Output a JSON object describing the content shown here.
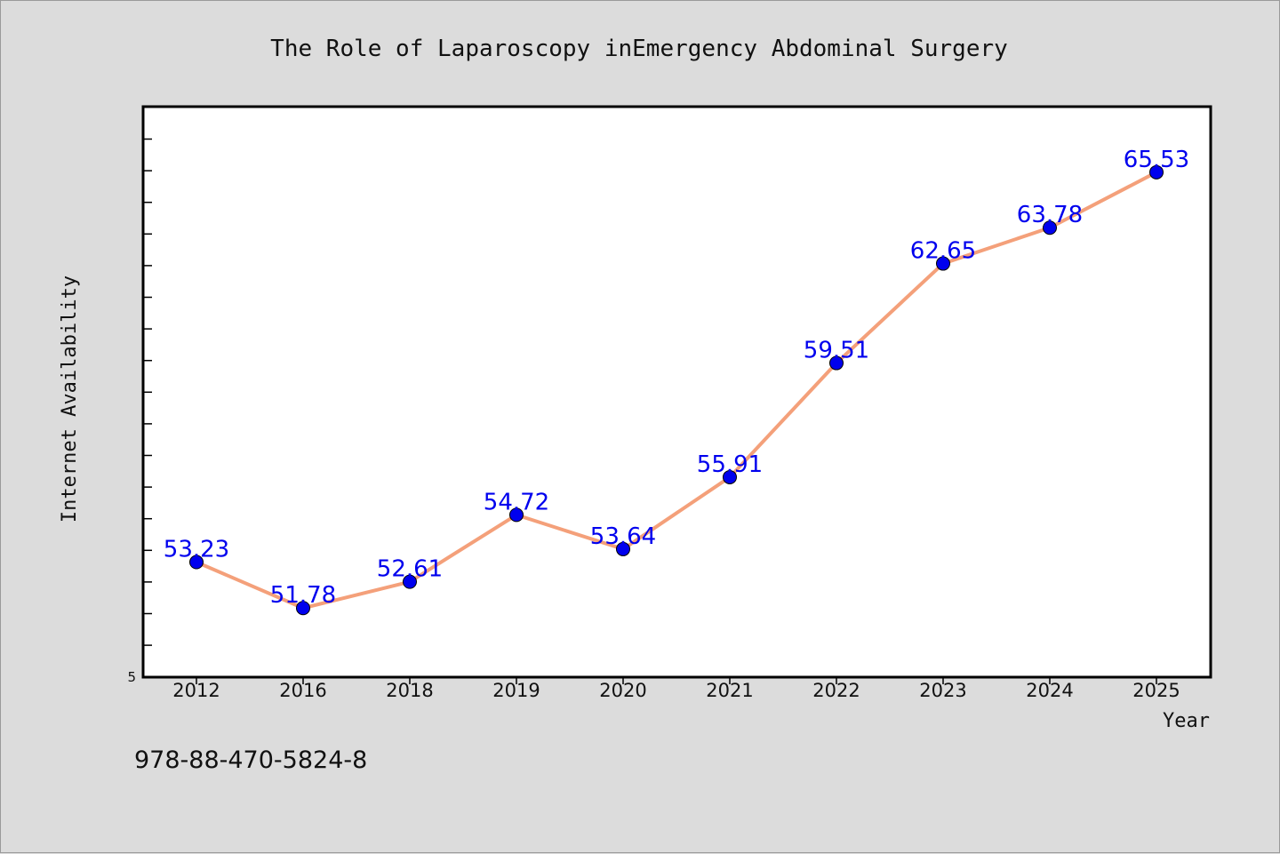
{
  "chart_data": {
    "type": "line",
    "title": "The Role of Laparoscopy inEmergency Abdominal Surgery",
    "xlabel": "Year",
    "ylabel": "Internet Availability",
    "categories": [
      "2012",
      "2016",
      "2018",
      "2019",
      "2020",
      "2021",
      "2022",
      "2023",
      "2024",
      "2025"
    ],
    "series": [
      {
        "values": [
          53.23,
          51.78,
          52.61,
          54.72,
          53.64,
          55.91,
          59.51,
          62.65,
          63.78,
          65.53
        ],
        "value_labels": [
          "53.23",
          "51.78",
          "52.61",
          "54.72",
          "53.64",
          "55.91",
          "59.51",
          "62.65",
          "63.78",
          "65.53"
        ]
      }
    ],
    "y_min_label": "5",
    "ylim": [
      49.6,
      67.6
    ],
    "grid": false,
    "legend": "none",
    "line_color": "#f4a07a",
    "marker_color": "#0000ee",
    "label_color": "#0000ee"
  },
  "footnote": "978-88-470-5824-8"
}
